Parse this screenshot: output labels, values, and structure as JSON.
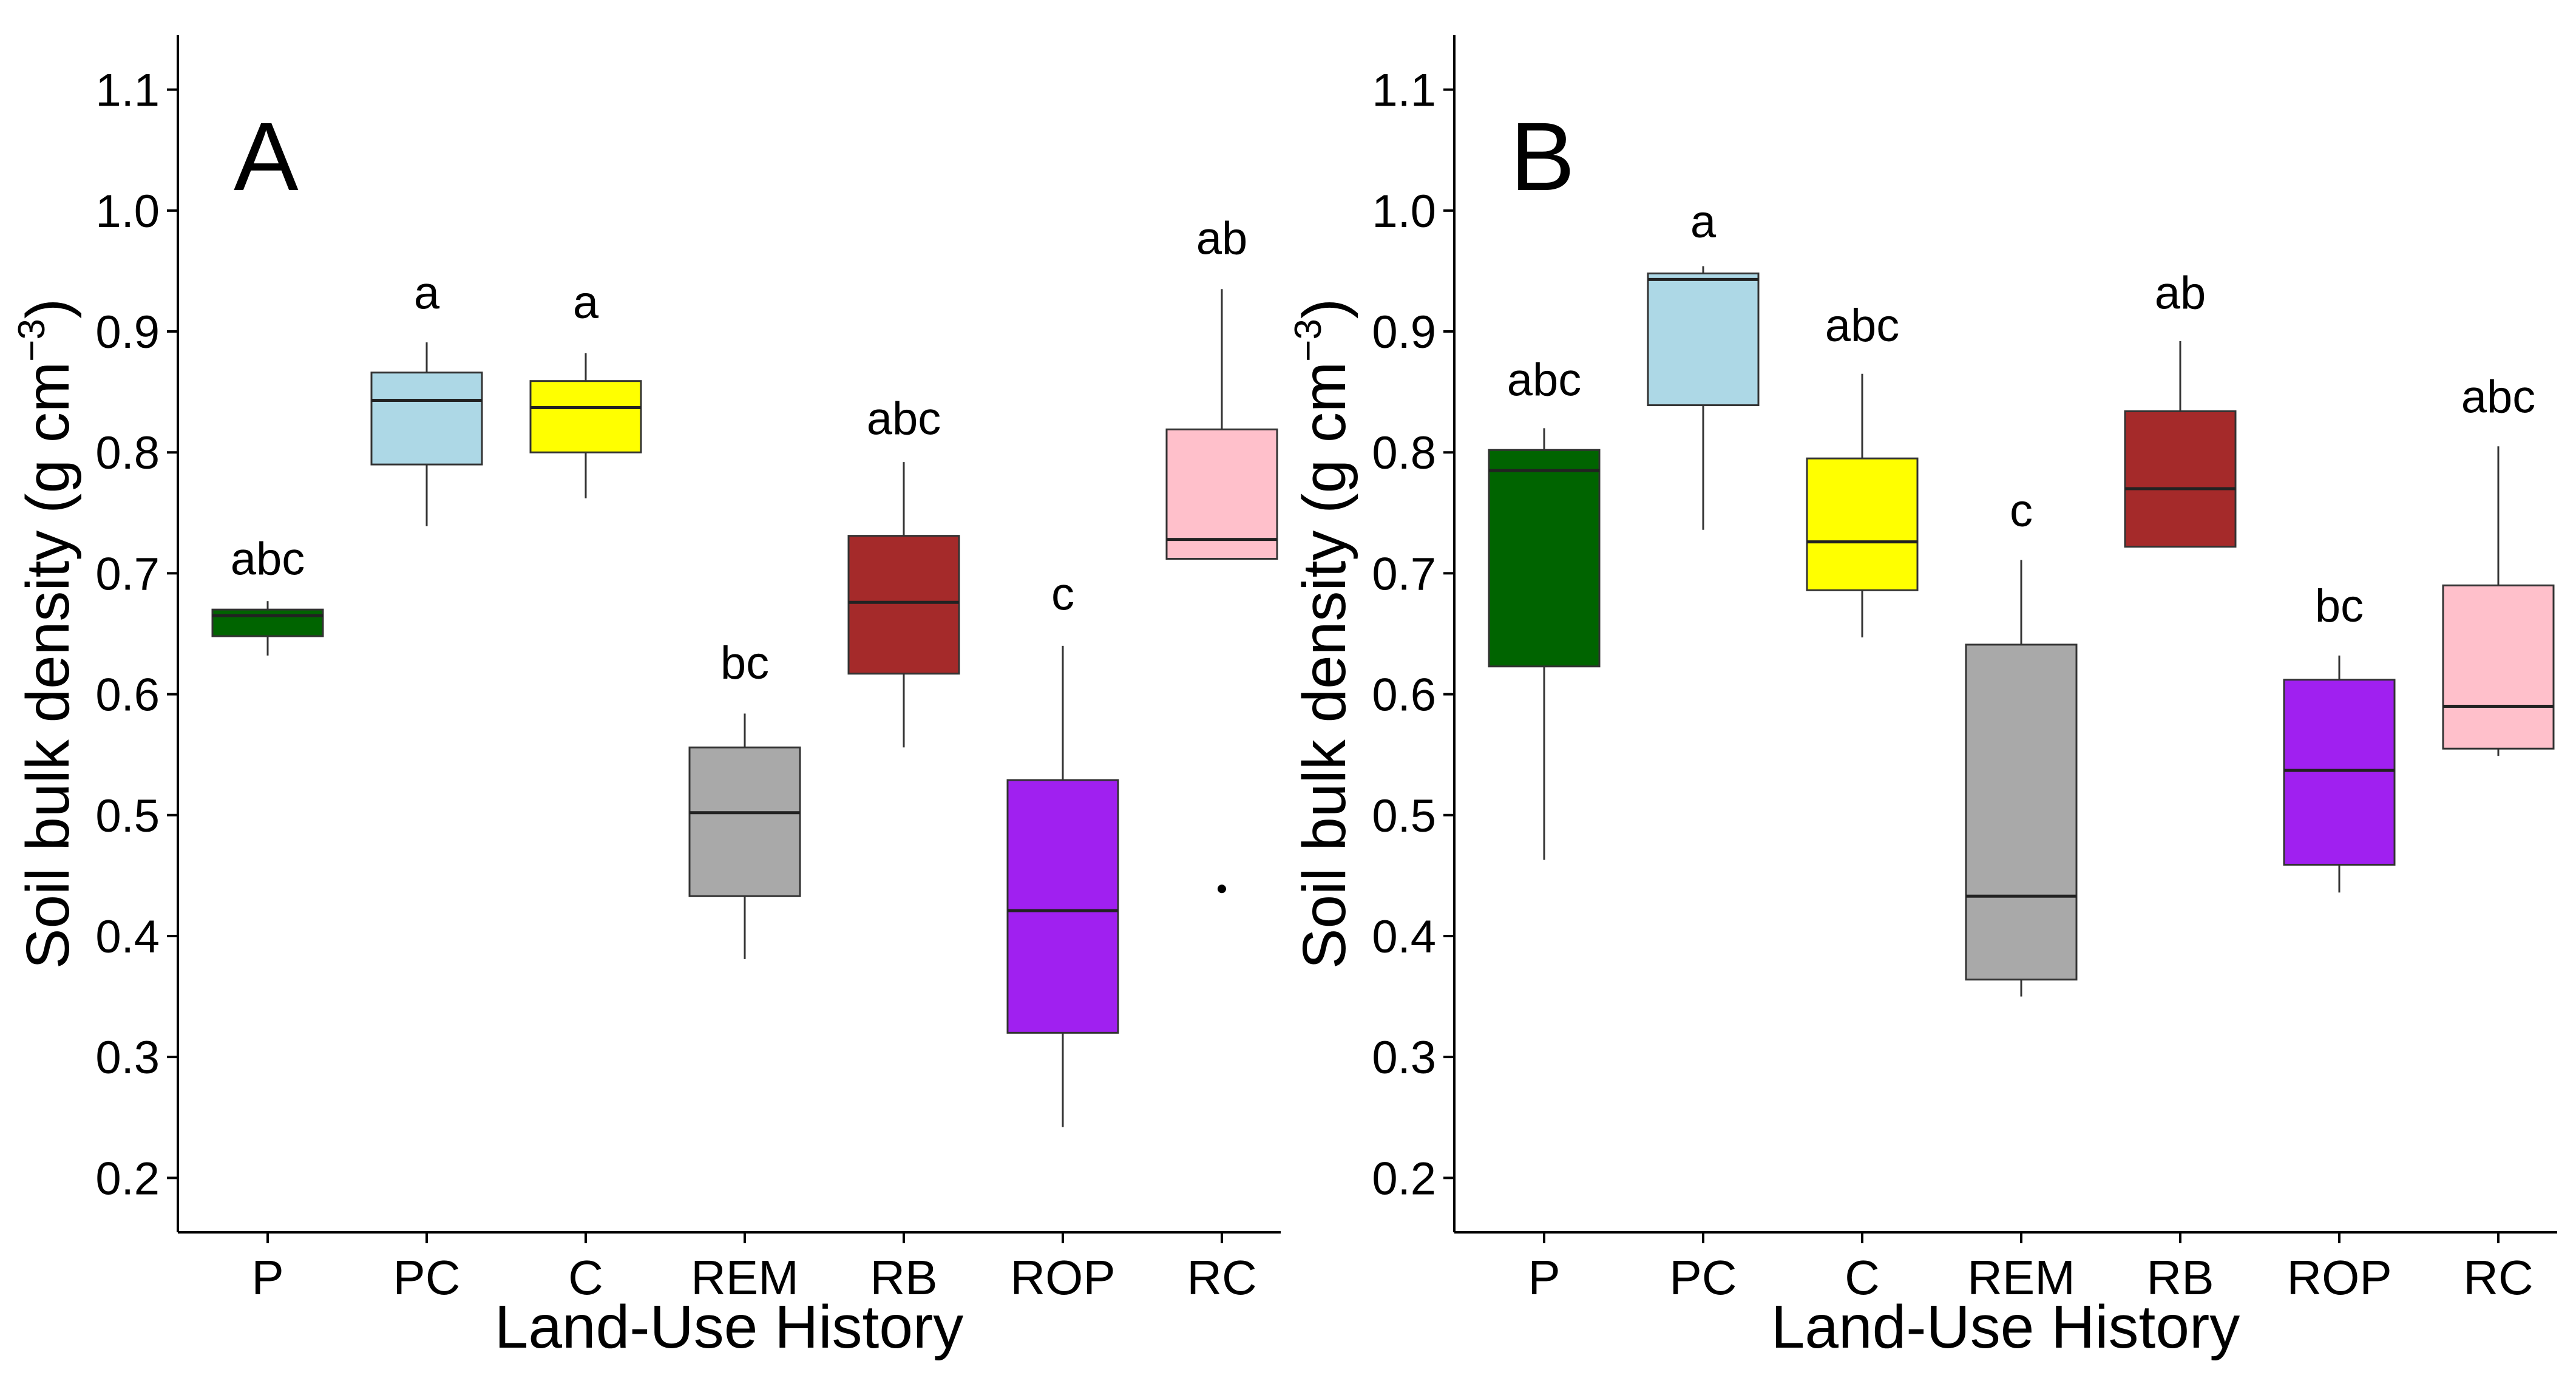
{
  "chart_data": [
    {
      "type": "boxplot",
      "panel_label": "A",
      "xlabel": "Land-Use History",
      "ylabel_main": "Soil bulk density (g cm",
      "ylabel_sup": "−3",
      "ylabel_close": ")",
      "ylim": [
        0.155,
        1.145
      ],
      "yticks": [
        0.2,
        0.3,
        0.4,
        0.5,
        0.6,
        0.7,
        0.8,
        0.9,
        1.0,
        1.1
      ],
      "ytick_labels": [
        "0.2",
        "0.3",
        "0.4",
        "0.5",
        "0.6",
        "0.7",
        "0.8",
        "0.9",
        "1.0",
        "1.1"
      ],
      "categories": [
        "P",
        "PC",
        "C",
        "REM",
        "RB",
        "ROP",
        "RC"
      ],
      "boxes": [
        {
          "category": "P",
          "whisker_low": 0.632,
          "q1": 0.648,
          "median": 0.665,
          "q3": 0.67,
          "whisker_high": 0.677,
          "outliers": [],
          "letter": "abc",
          "letter_y": 0.712,
          "color": "#006400"
        },
        {
          "category": "PC",
          "whisker_low": 0.739,
          "q1": 0.79,
          "median": 0.843,
          "q3": 0.866,
          "whisker_high": 0.891,
          "outliers": [],
          "letter": "a",
          "letter_y": 0.932,
          "color": "#ADD8E6"
        },
        {
          "category": "C",
          "whisker_low": 0.762,
          "q1": 0.8,
          "median": 0.837,
          "q3": 0.859,
          "whisker_high": 0.882,
          "outliers": [],
          "letter": "a",
          "letter_y": 0.924,
          "color": "#FFFF00"
        },
        {
          "category": "REM",
          "whisker_low": 0.381,
          "q1": 0.433,
          "median": 0.502,
          "q3": 0.556,
          "whisker_high": 0.584,
          "outliers": [],
          "letter": "bc",
          "letter_y": 0.626,
          "color": "#A9A9A9"
        },
        {
          "category": "RB",
          "whisker_low": 0.556,
          "q1": 0.617,
          "median": 0.676,
          "q3": 0.731,
          "whisker_high": 0.792,
          "outliers": [],
          "letter": "abc",
          "letter_y": 0.828,
          "color": "#A52A2A"
        },
        {
          "category": "ROP",
          "whisker_low": 0.242,
          "q1": 0.32,
          "median": 0.421,
          "q3": 0.529,
          "whisker_high": 0.64,
          "outliers": [],
          "letter": "c",
          "letter_y": 0.683,
          "color": "#A020F0"
        },
        {
          "category": "RC",
          "whisker_low": 0.712,
          "q1": 0.712,
          "median": 0.728,
          "q3": 0.819,
          "whisker_high": 0.935,
          "outliers": [
            0.439
          ],
          "letter": "ab",
          "letter_y": 0.977,
          "color": "#FFC0CB"
        }
      ]
    },
    {
      "type": "boxplot",
      "panel_label": "B",
      "xlabel": "Land-Use History",
      "ylabel_main": "Soil bulk density (g cm",
      "ylabel_sup": "−3",
      "ylabel_close": ")",
      "ylim": [
        0.155,
        1.145
      ],
      "yticks": [
        0.2,
        0.3,
        0.4,
        0.5,
        0.6,
        0.7,
        0.8,
        0.9,
        1.0,
        1.1
      ],
      "ytick_labels": [
        "0.2",
        "0.3",
        "0.4",
        "0.5",
        "0.6",
        "0.7",
        "0.8",
        "0.9",
        "1.0",
        "1.1"
      ],
      "categories": [
        "P",
        "PC",
        "C",
        "REM",
        "RB",
        "ROP",
        "RC"
      ],
      "boxes": [
        {
          "category": "P",
          "whisker_low": 0.463,
          "q1": 0.623,
          "median": 0.785,
          "q3": 0.802,
          "whisker_high": 0.82,
          "outliers": [],
          "letter": "abc",
          "letter_y": 0.86,
          "color": "#006400"
        },
        {
          "category": "PC",
          "whisker_low": 0.736,
          "q1": 0.839,
          "median": 0.943,
          "q3": 0.948,
          "whisker_high": 0.954,
          "outliers": [],
          "letter": "a",
          "letter_y": 0.991,
          "color": "#ADD8E6"
        },
        {
          "category": "C",
          "whisker_low": 0.647,
          "q1": 0.686,
          "median": 0.726,
          "q3": 0.795,
          "whisker_high": 0.865,
          "outliers": [],
          "letter": "abc",
          "letter_y": 0.905,
          "color": "#FFFF00"
        },
        {
          "category": "REM",
          "whisker_low": 0.35,
          "q1": 0.364,
          "median": 0.433,
          "q3": 0.641,
          "whisker_high": 0.711,
          "outliers": [],
          "letter": "c",
          "letter_y": 0.752,
          "color": "#A9A9A9"
        },
        {
          "category": "RB",
          "whisker_low": 0.722,
          "q1": 0.722,
          "median": 0.77,
          "q3": 0.834,
          "whisker_high": 0.892,
          "outliers": [],
          "letter": "ab",
          "letter_y": 0.932,
          "color": "#A52A2A"
        },
        {
          "category": "ROP",
          "whisker_low": 0.436,
          "q1": 0.459,
          "median": 0.537,
          "q3": 0.612,
          "whisker_high": 0.632,
          "outliers": [],
          "letter": "bc",
          "letter_y": 0.673,
          "color": "#A020F0"
        },
        {
          "category": "RC",
          "whisker_low": 0.549,
          "q1": 0.555,
          "median": 0.59,
          "q3": 0.69,
          "whisker_high": 0.805,
          "outliers": [],
          "letter": "abc",
          "letter_y": 0.846,
          "color": "#FFC0CB"
        }
      ]
    }
  ]
}
